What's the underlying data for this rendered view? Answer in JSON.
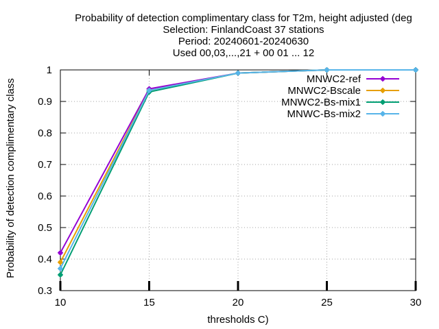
{
  "chart_data": {
    "type": "line",
    "title_lines": [
      "Probability of detection complimentary class  for T2m, height adjusted (deg",
      "Selection: FinlandCoast     37 stations",
      "Period: 20240601-20240630",
      "Used 00,03,...,21 + 00 01 ... 12"
    ],
    "xlabel": "thresholds C)",
    "ylabel": "Probability of detection complimentary class",
    "xlim": [
      10,
      30
    ],
    "ylim": [
      0.3,
      1
    ],
    "xticks": [
      10,
      15,
      20,
      25,
      30
    ],
    "yticks": [
      0.3,
      0.4,
      0.5,
      0.6,
      0.7,
      0.8,
      0.9,
      1
    ],
    "ytick_labels": [
      "0.3",
      "0.4",
      "0.5",
      "0.6",
      "0.7",
      "0.8",
      "0.9",
      "1"
    ],
    "grid": true,
    "legend_position": "top-right",
    "x": [
      10,
      15,
      20,
      25,
      30
    ],
    "series": [
      {
        "name": "MNWC2-ref",
        "color": "#9400d3",
        "values": [
          0.42,
          0.94,
          0.99,
          1.0,
          1.0
        ]
      },
      {
        "name": "MNWC2-Bscale",
        "color": "#e69f00",
        "values": [
          0.39,
          0.935,
          0.99,
          1.0,
          1.0
        ]
      },
      {
        "name": "MNWC2-Bs-mix1",
        "color": "#009e73",
        "values": [
          0.35,
          0.93,
          0.99,
          1.0,
          1.0
        ]
      },
      {
        "name": "MNWC-Bs-mix2",
        "color": "#56b4e9",
        "values": [
          0.37,
          0.935,
          0.99,
          1.0,
          1.0
        ]
      }
    ]
  }
}
